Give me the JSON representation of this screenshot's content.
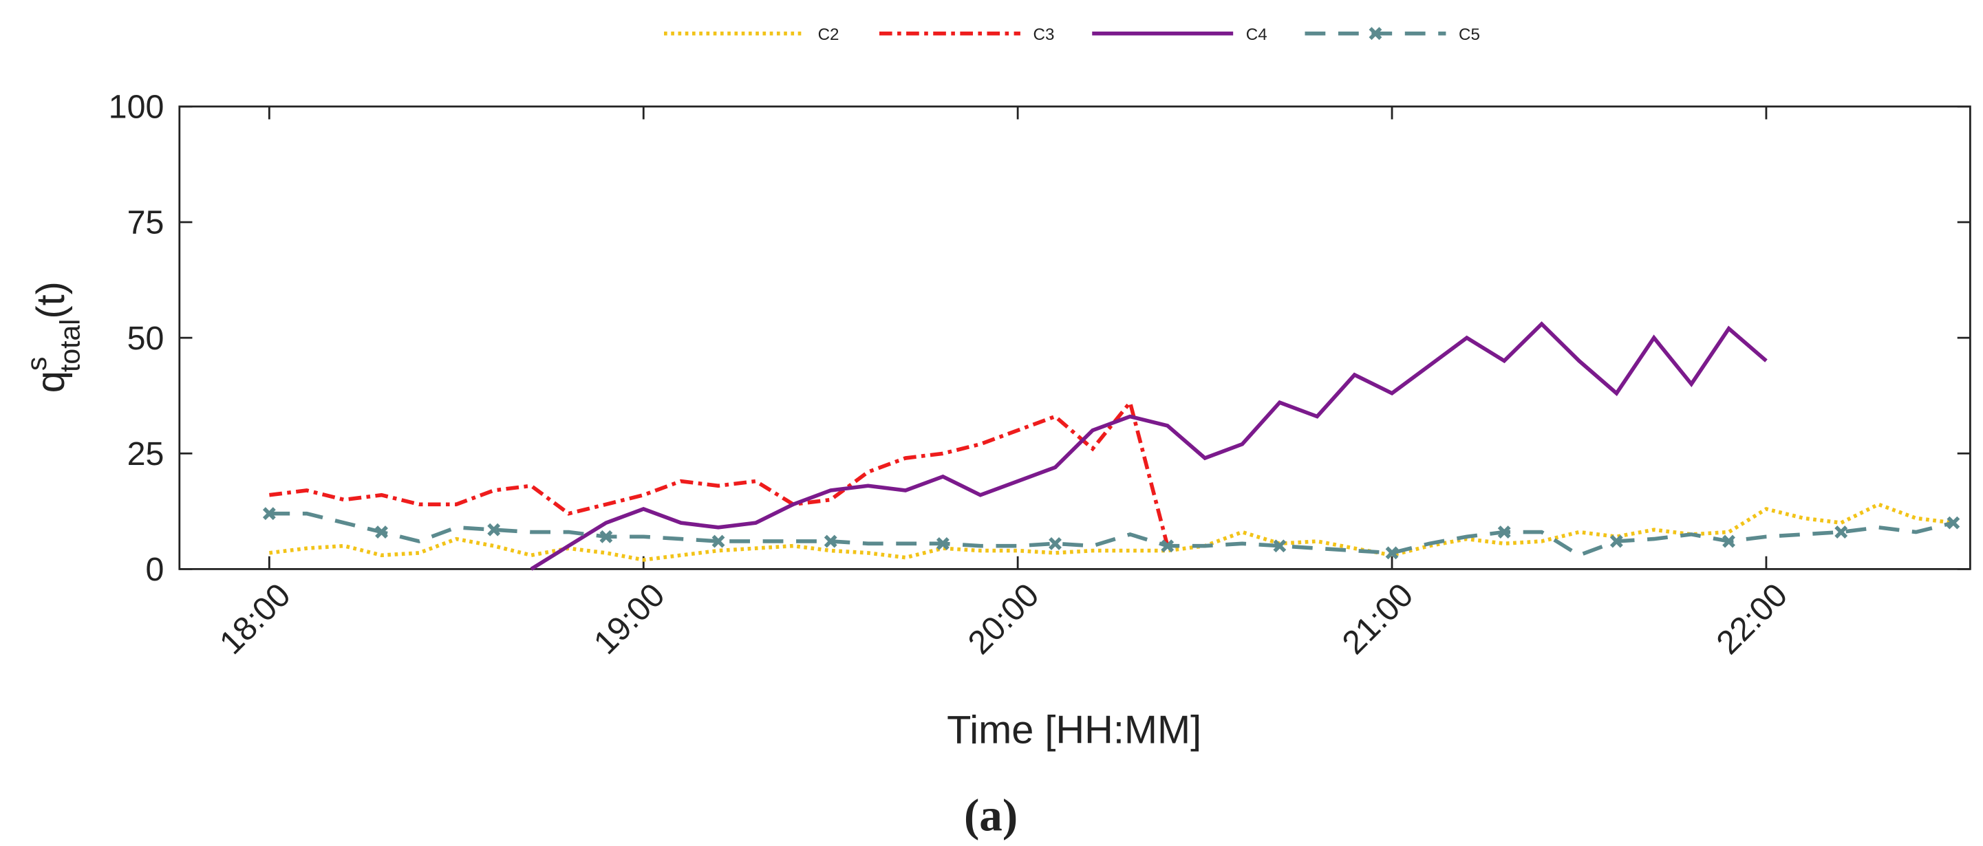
{
  "chart_data": {
    "type": "line",
    "x_label": "Time [HH:MM]",
    "y_label": {
      "base": "q",
      "sup": "s",
      "sub": "total",
      "suffix": "(t)"
    },
    "caption": "(a)",
    "x": [
      18.0,
      18.1,
      18.2,
      18.3,
      18.4,
      18.5,
      18.6,
      18.7,
      18.8,
      18.9,
      19.0,
      19.1,
      19.2,
      19.3,
      19.4,
      19.5,
      19.6,
      19.7,
      19.8,
      19.9,
      20.0,
      20.1,
      20.2,
      20.3,
      20.4,
      20.5,
      20.6,
      20.7,
      20.8,
      20.9,
      21.0,
      21.1,
      21.2,
      21.3,
      21.4,
      21.5,
      21.6,
      21.7,
      21.8,
      21.9,
      22.0,
      22.1,
      22.2,
      22.3,
      22.4,
      22.5
    ],
    "series": [
      {
        "name": "C2",
        "color": "#f2c318",
        "style": "dotted",
        "values": [
          3.5,
          4.5,
          5,
          3,
          3.5,
          6.5,
          5,
          3,
          4.5,
          3.5,
          2,
          3,
          4,
          4.5,
          5,
          4,
          3.5,
          2.5,
          4.5,
          4,
          4,
          3.5,
          4,
          4,
          4,
          5,
          8,
          5.5,
          6,
          4.5,
          3,
          5,
          6.5,
          5.5,
          6,
          8,
          7,
          8.5,
          7.5,
          8,
          13,
          11,
          10,
          14,
          11,
          10
        ]
      },
      {
        "name": "C3",
        "color": "#ee1c1c",
        "style": "dashdot",
        "values": [
          16,
          17,
          15,
          16,
          14,
          14,
          17,
          18,
          12,
          14,
          16,
          19,
          18,
          19,
          14,
          15,
          21,
          24,
          25,
          27,
          30,
          33,
          26,
          36,
          5,
          null,
          null,
          null,
          null,
          null,
          null,
          null,
          null,
          null,
          null,
          null,
          null,
          null,
          null,
          null,
          null,
          null,
          null,
          null,
          null,
          null
        ]
      },
      {
        "name": "C4",
        "color": "#7b1a8c",
        "style": "solid",
        "values": [
          null,
          null,
          null,
          null,
          null,
          null,
          null,
          0,
          5,
          10,
          13,
          10,
          9,
          10,
          14,
          17,
          18,
          17,
          20,
          16,
          19,
          22,
          30,
          33,
          31,
          24,
          27,
          36,
          33,
          42,
          38,
          44,
          50,
          45,
          53,
          45,
          38,
          50,
          40,
          52,
          45,
          null,
          null,
          null,
          null,
          null
        ]
      },
      {
        "name": "C5",
        "color": "#5b8a8e",
        "style": "dashed",
        "marker": "x",
        "values": [
          12,
          12,
          10,
          8,
          6,
          9,
          8.5,
          8,
          8,
          7,
          7,
          6.5,
          6,
          6,
          6,
          6,
          5.5,
          5.5,
          5.5,
          5,
          5,
          5.5,
          5,
          7.5,
          5,
          5,
          5.5,
          5,
          4.5,
          4,
          3.5,
          5.5,
          7,
          8,
          8,
          3,
          6,
          6.5,
          7.5,
          6,
          7,
          7.5,
          8,
          9,
          8,
          10
        ]
      }
    ],
    "xlim": [
      17.76,
      22.545
    ],
    "xticks": [
      {
        "value": 18,
        "label": "18:00"
      },
      {
        "value": 19,
        "label": "19:00"
      },
      {
        "value": 20,
        "label": "20:00"
      },
      {
        "value": 21,
        "label": "21:00"
      },
      {
        "value": 22,
        "label": "22:00"
      }
    ],
    "ylim": [
      0,
      100
    ],
    "yticks": [
      0,
      25,
      50,
      75,
      100
    ],
    "legend": "top"
  }
}
